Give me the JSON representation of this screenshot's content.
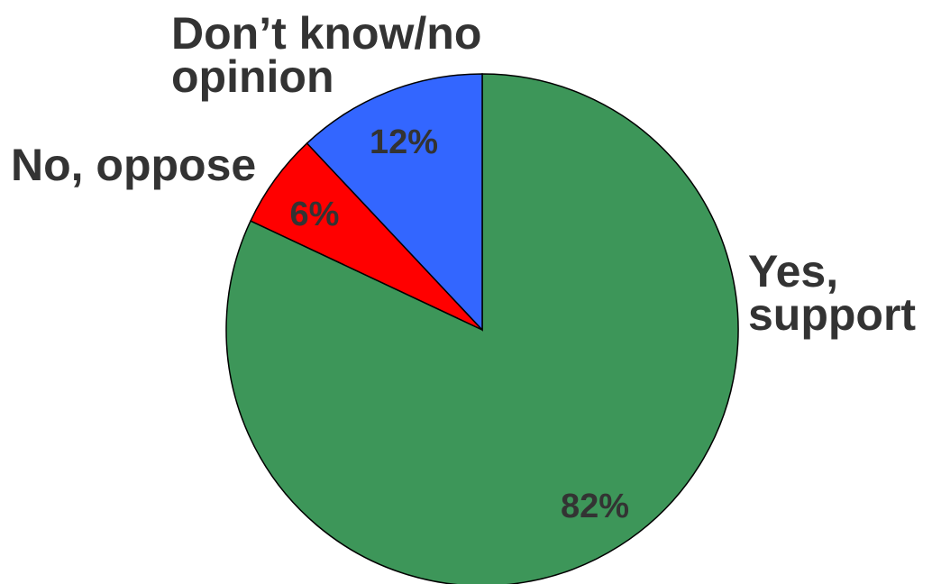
{
  "chart_data": {
    "type": "pie",
    "title": "",
    "slices": [
      {
        "label": "Yes, support",
        "label_lines": [
          "Yes,",
          "support"
        ],
        "value": 82,
        "value_label": "82%",
        "color": "#3d9659"
      },
      {
        "label": "No, oppose",
        "label_lines": [
          "No, oppose"
        ],
        "value": 6,
        "value_label": "6%",
        "color": "#ff0000"
      },
      {
        "label": "Don’t know/no opinion",
        "label_lines": [
          "Don’t know/no",
          "opinion"
        ],
        "value": 12,
        "value_label": "12%",
        "color": "#3366ff"
      }
    ],
    "start_angle": "12 o'clock",
    "direction": "clockwise",
    "legend": "none (labels next to slices)"
  }
}
